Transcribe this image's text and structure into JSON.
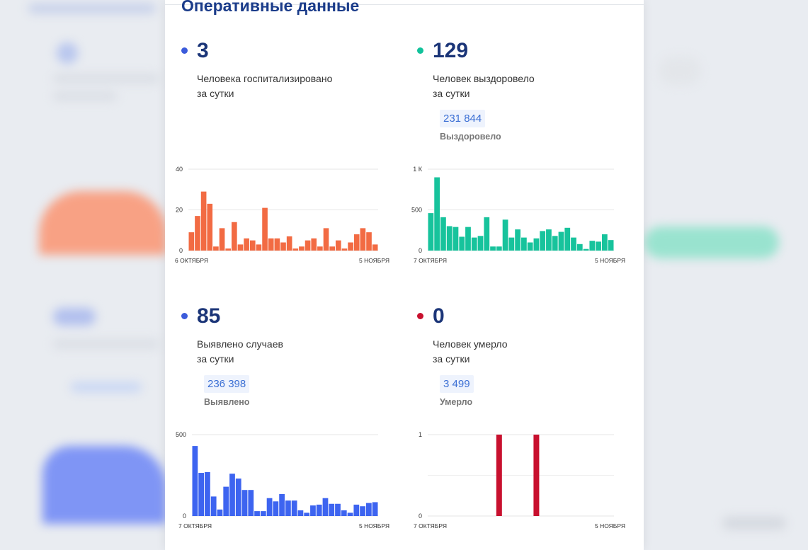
{
  "title": "Оперативные данные",
  "cards": {
    "hospitalized": {
      "value": "3",
      "line1": "Человека госпитализировано",
      "line2": "за сутки",
      "dot_color": "#3b5bdb"
    },
    "recovered": {
      "value": "129",
      "line1": "Человек выздоровело",
      "line2": "за сутки",
      "total": "231 844",
      "total_label": "Выздоровело",
      "dot_color": "#12c29b"
    },
    "cases": {
      "value": "85",
      "line1": "Выявлено случаев",
      "line2": "за сутки",
      "total": "236 398",
      "total_label": "Выявлено",
      "dot_color": "#3b5bdb"
    },
    "deaths": {
      "value": "0",
      "line1": "Человек умерло",
      "line2": "за сутки",
      "total": "3 499",
      "total_label": "Умерло",
      "dot_color": "#c8102e"
    }
  },
  "chart_data": [
    {
      "id": "hospitalized",
      "type": "bar",
      "color": "#f26b43",
      "ylim": [
        0,
        40
      ],
      "yticks": [
        0,
        20,
        40
      ],
      "ytick_labels": [
        "0",
        "20",
        "40"
      ],
      "x_start_label": "6 ОКТЯБРЯ",
      "x_end_label": "5 НОЯБРЯ",
      "values": [
        9,
        17,
        29,
        23,
        2,
        11,
        1,
        14,
        3,
        6,
        5,
        3,
        21,
        6,
        6,
        4,
        7,
        1,
        2,
        5,
        6,
        2,
        11,
        2,
        5,
        1,
        4,
        8,
        11,
        9,
        3
      ]
    },
    {
      "id": "recovered",
      "type": "bar",
      "color": "#17c39c",
      "ylim": [
        0,
        1000
      ],
      "yticks": [
        0,
        500,
        1000
      ],
      "ytick_labels": [
        "0",
        "500",
        "1 К"
      ],
      "x_start_label": "7 ОКТЯБРЯ",
      "x_end_label": "5 НОЯБРЯ",
      "values": [
        460,
        900,
        410,
        300,
        290,
        170,
        290,
        160,
        180,
        410,
        50,
        50,
        380,
        160,
        260,
        160,
        100,
        150,
        240,
        260,
        180,
        230,
        280,
        160,
        80,
        20,
        120,
        110,
        200,
        129
      ]
    },
    {
      "id": "cases",
      "type": "bar",
      "color": "#3d64f0",
      "ylim": [
        0,
        500
      ],
      "yticks": [
        0,
        500
      ],
      "ytick_labels": [
        "0",
        "500"
      ],
      "x_start_label": "7 ОКТЯБРЯ",
      "x_end_label": "5 НОЯБРЯ",
      "values": [
        430,
        265,
        270,
        120,
        40,
        180,
        260,
        230,
        160,
        160,
        30,
        30,
        110,
        90,
        135,
        95,
        95,
        35,
        20,
        65,
        70,
        110,
        75,
        75,
        35,
        20,
        70,
        60,
        80,
        85
      ]
    },
    {
      "id": "deaths",
      "type": "bar",
      "color": "#c8102e",
      "ylim": [
        0,
        1
      ],
      "yticks": [
        0,
        1
      ],
      "ytick_labels": [
        "0",
        "1"
      ],
      "x_start_label": "7 ОКТЯБРЯ",
      "x_end_label": "5 НОЯБРЯ",
      "values": [
        0,
        0,
        0,
        0,
        0,
        0,
        0,
        0,
        0,
        0,
        0,
        1,
        0,
        0,
        0,
        0,
        0,
        1,
        0,
        0,
        0,
        0,
        0,
        0,
        0,
        0,
        0,
        0,
        0,
        0
      ]
    }
  ]
}
